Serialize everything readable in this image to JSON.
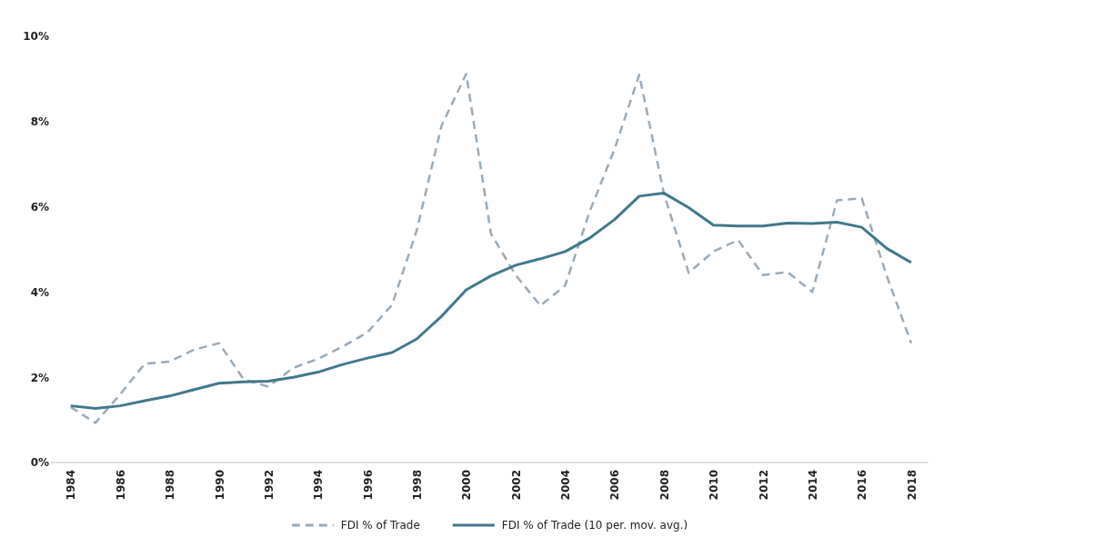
{
  "chart_data": {
    "type": "line",
    "x": [
      1984,
      1985,
      1986,
      1987,
      1988,
      1989,
      1990,
      1991,
      1992,
      1993,
      1994,
      1995,
      1996,
      1997,
      1998,
      1999,
      2000,
      2001,
      2002,
      2003,
      2004,
      2005,
      2006,
      2007,
      2008,
      2009,
      2010,
      2011,
      2012,
      2013,
      2014,
      2015,
      2016,
      2017,
      2018
    ],
    "series": [
      {
        "name": "FDI % of Trade",
        "color": "#9aabb9",
        "line_style": "dashed",
        "values": [
          1.3,
          0.93,
          1.6,
          2.32,
          2.37,
          2.65,
          2.8,
          1.95,
          1.78,
          2.22,
          2.43,
          2.72,
          3.05,
          3.7,
          5.45,
          7.9,
          9.12,
          5.37,
          4.4,
          3.68,
          4.15,
          5.9,
          7.35,
          9.1,
          6.3,
          4.45,
          4.95,
          5.22,
          4.4,
          4.47,
          4.0,
          6.15,
          6.2,
          4.4,
          2.8
        ]
      },
      {
        "name": "FDI % of Trade (10 per. mov. avg.)",
        "color": "#41788c",
        "line_style": "solid",
        "values": [
          1.33,
          1.27,
          1.33,
          1.45,
          1.56,
          1.71,
          1.86,
          1.89,
          1.91,
          2.0,
          2.12,
          2.3,
          2.45,
          2.58,
          2.9,
          3.43,
          4.05,
          4.38,
          4.63,
          4.78,
          4.95,
          5.27,
          5.7,
          6.25,
          6.32,
          5.98,
          5.57,
          5.55,
          5.55,
          5.62,
          5.61,
          5.64,
          5.52,
          5.03,
          4.69
        ]
      }
    ],
    "xlim": [
      1983.2,
      2018.7
    ],
    "xticks": [
      1984,
      1986,
      1988,
      1990,
      1992,
      1994,
      1996,
      1998,
      2000,
      2002,
      2004,
      2006,
      2008,
      2010,
      2012,
      2014,
      2016,
      2018
    ],
    "ylim": [
      0,
      10
    ],
    "yticks": [
      {
        "value": 0,
        "label": "0%"
      },
      {
        "value": 2,
        "label": "2%"
      },
      {
        "value": 4,
        "label": "4%"
      },
      {
        "value": 6,
        "label": "6%"
      },
      {
        "value": 8,
        "label": "8%"
      },
      {
        "value": 10,
        "label": "10%"
      }
    ],
    "grid": false,
    "legend": "bottom",
    "marker": "none"
  }
}
